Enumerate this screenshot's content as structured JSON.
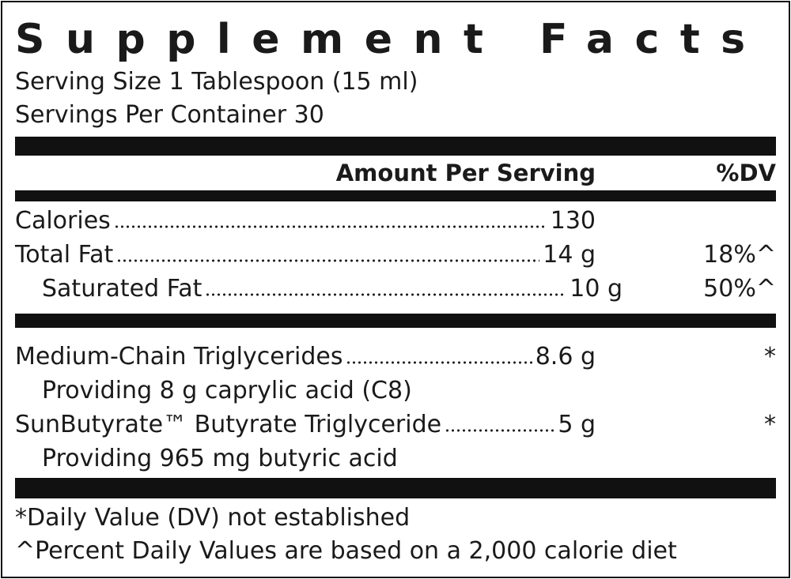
{
  "title": "Supplement Facts",
  "serving_size": "Serving Size 1 Tablespoon (15 ml)",
  "servings_per_container": "Servings Per Container 30",
  "header": {
    "amount": "Amount Per Serving",
    "dv": "%DV"
  },
  "nutrients": [
    {
      "name": "Calories",
      "amount": "130",
      "dv": null,
      "indent": false
    },
    {
      "name": "Total Fat",
      "amount": "14 g",
      "dv": "18%^",
      "indent": false
    },
    {
      "name": "Saturated Fat",
      "amount": "10 g",
      "dv": "50%^",
      "indent": true
    }
  ],
  "ingredients": [
    {
      "name": "Medium-Chain Triglycerides",
      "amount": "8.6 g",
      "dv": "*",
      "note": "Providing 8 g caprylic acid (C8)"
    },
    {
      "name": "SunButyrate™ Butyrate Triglyceride",
      "amount": "5 g",
      "dv": "*",
      "note": "Providing 965 mg butyric acid"
    }
  ],
  "footnotes": [
    "*Daily Value (DV) not established",
    "^Percent Daily Values are based on a 2,000 calorie diet"
  ]
}
